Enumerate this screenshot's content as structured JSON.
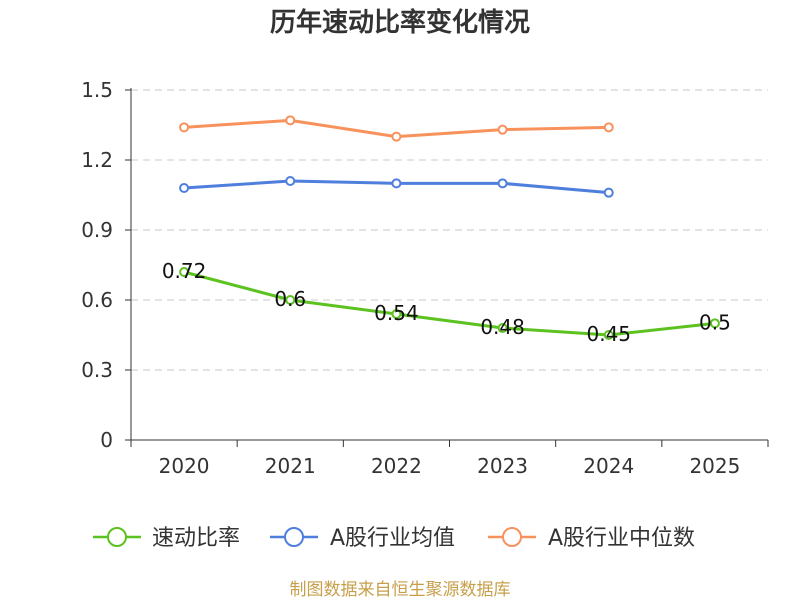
{
  "chart_data": {
    "type": "line",
    "title": "历年速动比率变化情况",
    "xlabel": "",
    "ylabel": "",
    "categories": [
      "2020",
      "2021",
      "2022",
      "2023",
      "2024",
      "2025"
    ],
    "ylim": [
      0,
      1.5
    ],
    "yticks": [
      0,
      0.3,
      0.6,
      0.9,
      1.2,
      1.5
    ],
    "grid": true,
    "legend_position": "bottom",
    "series": [
      {
        "name": "速动比率",
        "color": "#5cc21f",
        "show_labels": true,
        "values": [
          0.72,
          0.6,
          0.54,
          0.48,
          0.45,
          0.5
        ]
      },
      {
        "name": "A股行业均值",
        "color": "#4f7fdc",
        "show_labels": false,
        "values": [
          1.08,
          1.11,
          1.1,
          1.1,
          1.06,
          null
        ]
      },
      {
        "name": "A股行业中位数",
        "color": "#f7925c",
        "show_labels": false,
        "values": [
          1.34,
          1.37,
          1.3,
          1.33,
          1.34,
          null
        ]
      }
    ]
  },
  "footer": {
    "text": "制图数据来自恒生聚源数据库",
    "color": "#c79f4a"
  },
  "axis_color": "#333333",
  "grid_color": "#c8c8c8"
}
